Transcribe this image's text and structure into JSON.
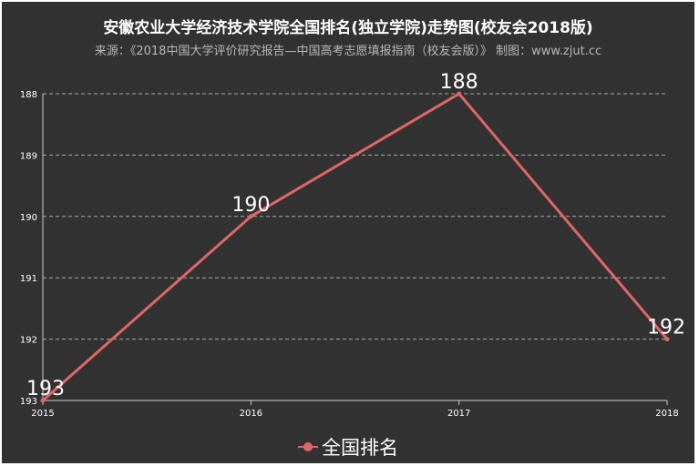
{
  "title": "安徽农业大学经济技术学院全国排名(独立学院)走势图(校友会2018版)",
  "subtitle": "来源：《2018中国大学评价研究报告—中国高考志愿填报指南（校友会版）》 制图：www.zjut.cc",
  "colors": {
    "background": "#323232",
    "line": "#e06666",
    "grid": "#aaaaaa",
    "text": "#ffffff"
  },
  "chart_data": {
    "type": "line",
    "title": "安徽农业大学经济技术学院全国排名(独立学院)走势图(校友会2018版)",
    "subtitle": "来源：《2018中国大学评价研究报告—中国高考志愿填报指南（校友会版）》 制图：www.zjut.cc",
    "categories": [
      "2015",
      "2016",
      "2017",
      "2018"
    ],
    "series": [
      {
        "name": "全国排名",
        "values": [
          193,
          190,
          188,
          192
        ],
        "labels": [
          "193",
          "190",
          "188",
          "192"
        ]
      }
    ],
    "y_ticks": [
      "188",
      "189",
      "190",
      "191",
      "192",
      "193"
    ],
    "ylim": [
      193,
      188
    ],
    "y_inverted": true,
    "grid": true,
    "legend": "bottom-center"
  }
}
